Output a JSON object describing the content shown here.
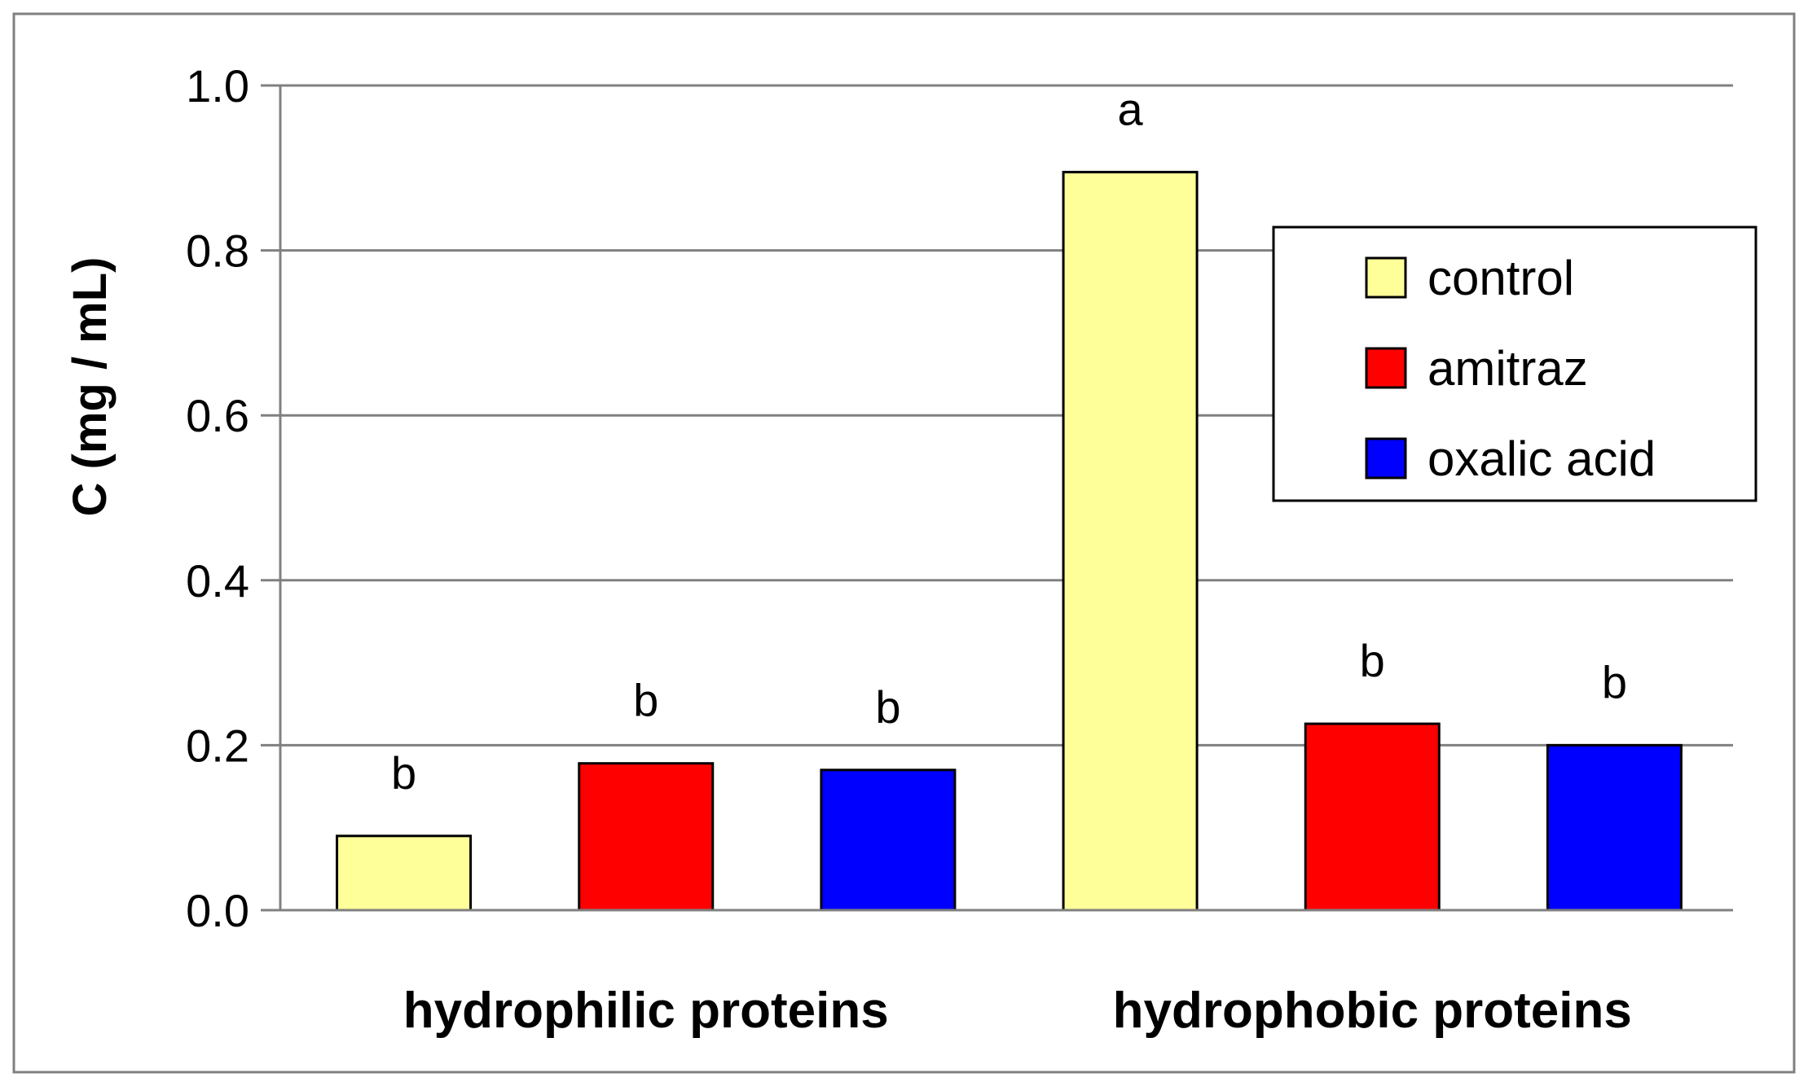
{
  "chart_data": {
    "type": "bar",
    "title": "",
    "xlabel": "",
    "ylabel": "C (mg / mL)",
    "ylim": [
      0,
      1.0
    ],
    "yticks": [
      "0.0",
      "0.2",
      "0.4",
      "0.6",
      "0.8",
      "1.0"
    ],
    "grid": true,
    "legend_position": "top-right",
    "categories": [
      "hydrophilic proteins",
      "hydrophobic proteins"
    ],
    "series": [
      {
        "name": "control",
        "color": "#ffff99",
        "values": [
          0.09,
          0.895
        ],
        "letters": [
          "b",
          "a"
        ]
      },
      {
        "name": "amitraz",
        "color": "#ff0000",
        "values": [
          0.178,
          0.226
        ],
        "letters": [
          "b",
          "b"
        ]
      },
      {
        "name": "oxalic acid",
        "color": "#0000ff",
        "values": [
          0.17,
          0.2
        ],
        "letters": [
          "b",
          "b"
        ]
      }
    ]
  }
}
